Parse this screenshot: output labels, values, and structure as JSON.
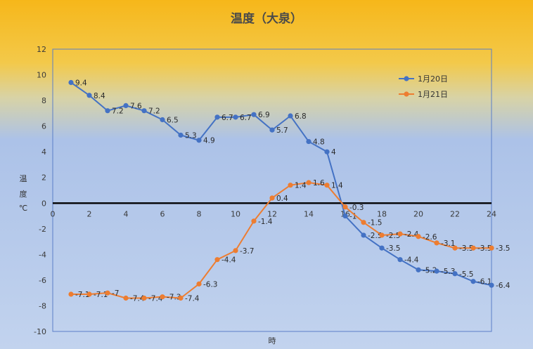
{
  "chart_data": {
    "type": "line",
    "title": "温度（大泉）",
    "xlabel": "時",
    "ylabel": "温度℃",
    "ylabel_chars": [
      "温",
      "度",
      "℃"
    ],
    "xlim": [
      0,
      24
    ],
    "ylim": [
      -10,
      12
    ],
    "xticks": [
      0,
      2,
      4,
      6,
      8,
      10,
      12,
      14,
      16,
      18,
      20,
      22,
      24
    ],
    "yticks": [
      -10,
      -8,
      -6,
      -4,
      -2,
      0,
      2,
      4,
      6,
      8,
      10,
      12
    ],
    "grid": false,
    "zero_line": true,
    "legend_position": "top-right",
    "x": [
      1,
      2,
      3,
      4,
      5,
      6,
      7,
      8,
      9,
      10,
      11,
      12,
      13,
      14,
      15,
      16,
      17,
      18,
      19,
      20,
      21,
      22,
      23,
      24
    ],
    "series": [
      {
        "name": "1月20日",
        "color": "#4472C4",
        "values": [
          9.4,
          8.4,
          7.2,
          7.6,
          7.2,
          6.5,
          5.3,
          4.9,
          6.7,
          6.7,
          6.9,
          5.7,
          6.8,
          4.8,
          4,
          -1,
          -2.5,
          -3.5,
          -4.4,
          -5.2,
          -5.3,
          -5.5,
          -6.1,
          -6.4
        ]
      },
      {
        "name": "1月21日",
        "color": "#ED7D31",
        "values": [
          -7.1,
          -7.1,
          -7,
          -7.4,
          -7.4,
          -7.3,
          -7.4,
          -6.3,
          -4.4,
          -3.7,
          -1.4,
          0.4,
          1.4,
          1.6,
          1.4,
          -0.3,
          -1.5,
          -2.5,
          -2.4,
          -2.6,
          -3.1,
          -3.5,
          -3.5,
          -3.5
        ]
      }
    ]
  }
}
